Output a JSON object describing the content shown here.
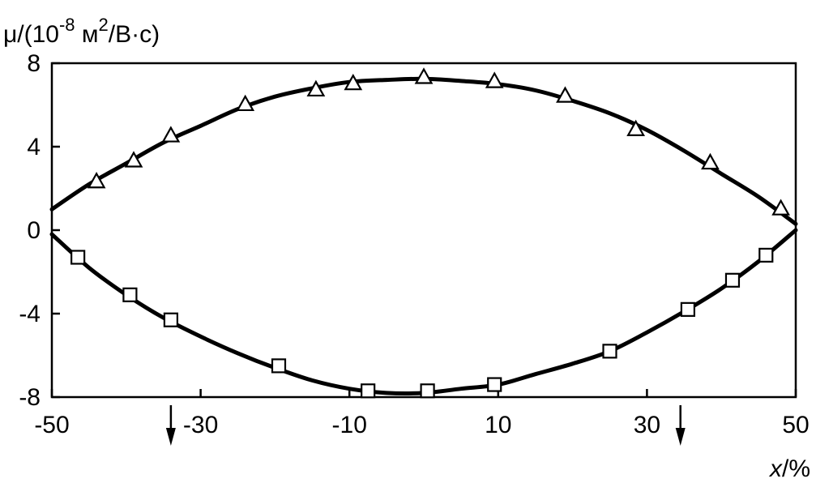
{
  "chart_data": {
    "type": "line",
    "ylabel": {
      "prefix": "μ/(10",
      "exp1": "-8",
      "mid": " м",
      "exp2": "2",
      "suffix": "/В·с)"
    },
    "xlabel": {
      "var": "x",
      "unit": "/%"
    },
    "xlim": [
      -50,
      50
    ],
    "ylim": [
      -8,
      8
    ],
    "xticks": [
      -50,
      -30,
      -10,
      10,
      30,
      50
    ],
    "xtick_labels": [
      "-50",
      "-30",
      "-10",
      "10",
      "30",
      "50"
    ],
    "yticks": [
      8,
      4,
      0,
      -4,
      -8
    ],
    "ytick_labels": [
      "8",
      "4",
      "0",
      "-4",
      "-8"
    ],
    "grid": false,
    "series": [
      {
        "marker": "triangle",
        "points": [
          [
            -44,
            2.3
          ],
          [
            -39,
            3.3
          ],
          [
            -34,
            4.5
          ],
          [
            -24,
            6.0
          ],
          [
            -14.5,
            6.7
          ],
          [
            -9.5,
            7.0
          ],
          [
            0,
            7.3
          ],
          [
            9.5,
            7.1
          ],
          [
            19,
            6.4
          ],
          [
            28.5,
            4.8
          ],
          [
            38.5,
            3.2
          ],
          [
            48,
            1.0
          ]
        ],
        "curve": [
          [
            -50,
            1.0
          ],
          [
            -45,
            2.2
          ],
          [
            -40,
            3.2
          ],
          [
            -35,
            4.2
          ],
          [
            -30,
            5.0
          ],
          [
            -25,
            5.8
          ],
          [
            -20,
            6.4
          ],
          [
            -15,
            6.8
          ],
          [
            -10,
            7.1
          ],
          [
            -5,
            7.2
          ],
          [
            0,
            7.25
          ],
          [
            5,
            7.15
          ],
          [
            10,
            7.0
          ],
          [
            15,
            6.7
          ],
          [
            20,
            6.2
          ],
          [
            25,
            5.6
          ],
          [
            30,
            4.8
          ],
          [
            35,
            3.8
          ],
          [
            40,
            2.7
          ],
          [
            45,
            1.6
          ],
          [
            50,
            0.3
          ]
        ]
      },
      {
        "marker": "square",
        "points": [
          [
            -46.5,
            -1.3
          ],
          [
            -39.5,
            -3.1
          ],
          [
            -34,
            -4.3
          ],
          [
            -19.5,
            -6.5
          ],
          [
            -7.5,
            -7.7
          ],
          [
            0.5,
            -7.7
          ],
          [
            9.5,
            -7.4
          ],
          [
            25,
            -5.8
          ],
          [
            35.5,
            -3.8
          ],
          [
            41.5,
            -2.4
          ],
          [
            46,
            -1.2
          ]
        ],
        "curve": [
          [
            -50,
            -0.2
          ],
          [
            -45,
            -1.8
          ],
          [
            -40,
            -3.1
          ],
          [
            -35,
            -4.2
          ],
          [
            -30,
            -5.1
          ],
          [
            -25,
            -5.9
          ],
          [
            -20,
            -6.6
          ],
          [
            -15,
            -7.2
          ],
          [
            -10,
            -7.6
          ],
          [
            -5,
            -7.8
          ],
          [
            0,
            -7.8
          ],
          [
            5,
            -7.6
          ],
          [
            10,
            -7.4
          ],
          [
            15,
            -6.9
          ],
          [
            20,
            -6.4
          ],
          [
            25,
            -5.8
          ],
          [
            30,
            -4.9
          ],
          [
            35,
            -3.9
          ],
          [
            40,
            -2.8
          ],
          [
            45,
            -1.5
          ],
          [
            50,
            0.0
          ]
        ]
      }
    ],
    "annotations": [
      {
        "type": "arrow-down",
        "x": -34
      },
      {
        "type": "arrow-down",
        "x": 34.5
      }
    ]
  }
}
